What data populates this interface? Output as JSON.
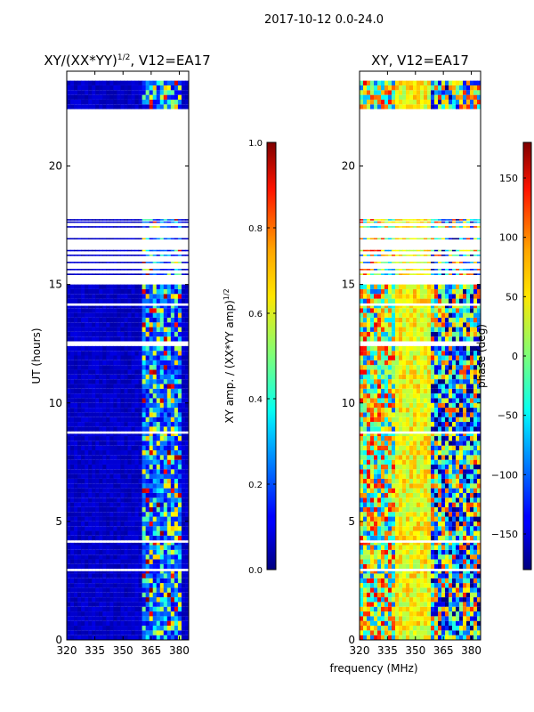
{
  "figure": {
    "suptitle": "2017-10-12 0.0-24.0",
    "shared_xlabel": "frequency (MHz)"
  },
  "chart_data": [
    {
      "type": "heatmap",
      "title_prefix": "XY/(XX*YY)",
      "title_exponent": "1/2",
      "title_suffix": ", V12=EA17",
      "xlabel": "",
      "ylabel": "UT (hours)",
      "xlim": [
        320,
        385
      ],
      "ylim": [
        0,
        24
      ],
      "xticks": [
        320,
        335,
        350,
        365,
        380
      ],
      "yticks": [
        0,
        5,
        10,
        15,
        20
      ],
      "colorbar": {
        "label_prefix": "XY amp. / (XX*YY amp)",
        "label_exponent": "1/2",
        "range": [
          0.0,
          1.0
        ],
        "ticks": [
          "0.0",
          "0.2",
          "0.4",
          "0.6",
          "0.8",
          "1.0"
        ],
        "colormap": "jet"
      },
      "data_blocks_ut": [
        [
          0.0,
          2.9
        ],
        [
          3.0,
          4.1
        ],
        [
          4.2,
          8.7
        ],
        [
          8.8,
          12.4
        ],
        [
          12.6,
          14.1
        ],
        [
          14.2,
          15.0
        ],
        [
          22.4,
          23.6
        ]
      ],
      "sparse_lines_ut": [
        15.4,
        15.6,
        15.9,
        16.2,
        16.4,
        16.9,
        17.4,
        17.6,
        17.7
      ],
      "high_amp_band_mhz": [
        360,
        381
      ]
    },
    {
      "type": "heatmap",
      "title": "XY, V12=EA17",
      "xlabel": "",
      "ylabel": "",
      "xlim": [
        320,
        385
      ],
      "ylim": [
        0,
        24
      ],
      "xticks": [
        320,
        335,
        350,
        365,
        380
      ],
      "yticks": [
        0,
        5,
        10,
        15,
        20
      ],
      "colorbar": {
        "label": "phase (deg)",
        "range": [
          -180,
          180
        ],
        "ticks": [
          "150",
          "100",
          "50",
          "0",
          "−50",
          "−100",
          "−150"
        ],
        "tick_values": [
          150,
          100,
          50,
          0,
          -50,
          -100,
          -150
        ],
        "colormap": "jet"
      },
      "data_blocks_ut": [
        [
          0.0,
          2.9
        ],
        [
          3.0,
          4.1
        ],
        [
          4.2,
          8.7
        ],
        [
          8.8,
          12.4
        ],
        [
          12.6,
          14.1
        ],
        [
          14.2,
          15.0
        ],
        [
          22.4,
          23.6
        ]
      ],
      "sparse_lines_ut": [
        15.4,
        15.6,
        15.9,
        16.2,
        16.4,
        16.9,
        17.4,
        17.6,
        17.7
      ]
    }
  ]
}
